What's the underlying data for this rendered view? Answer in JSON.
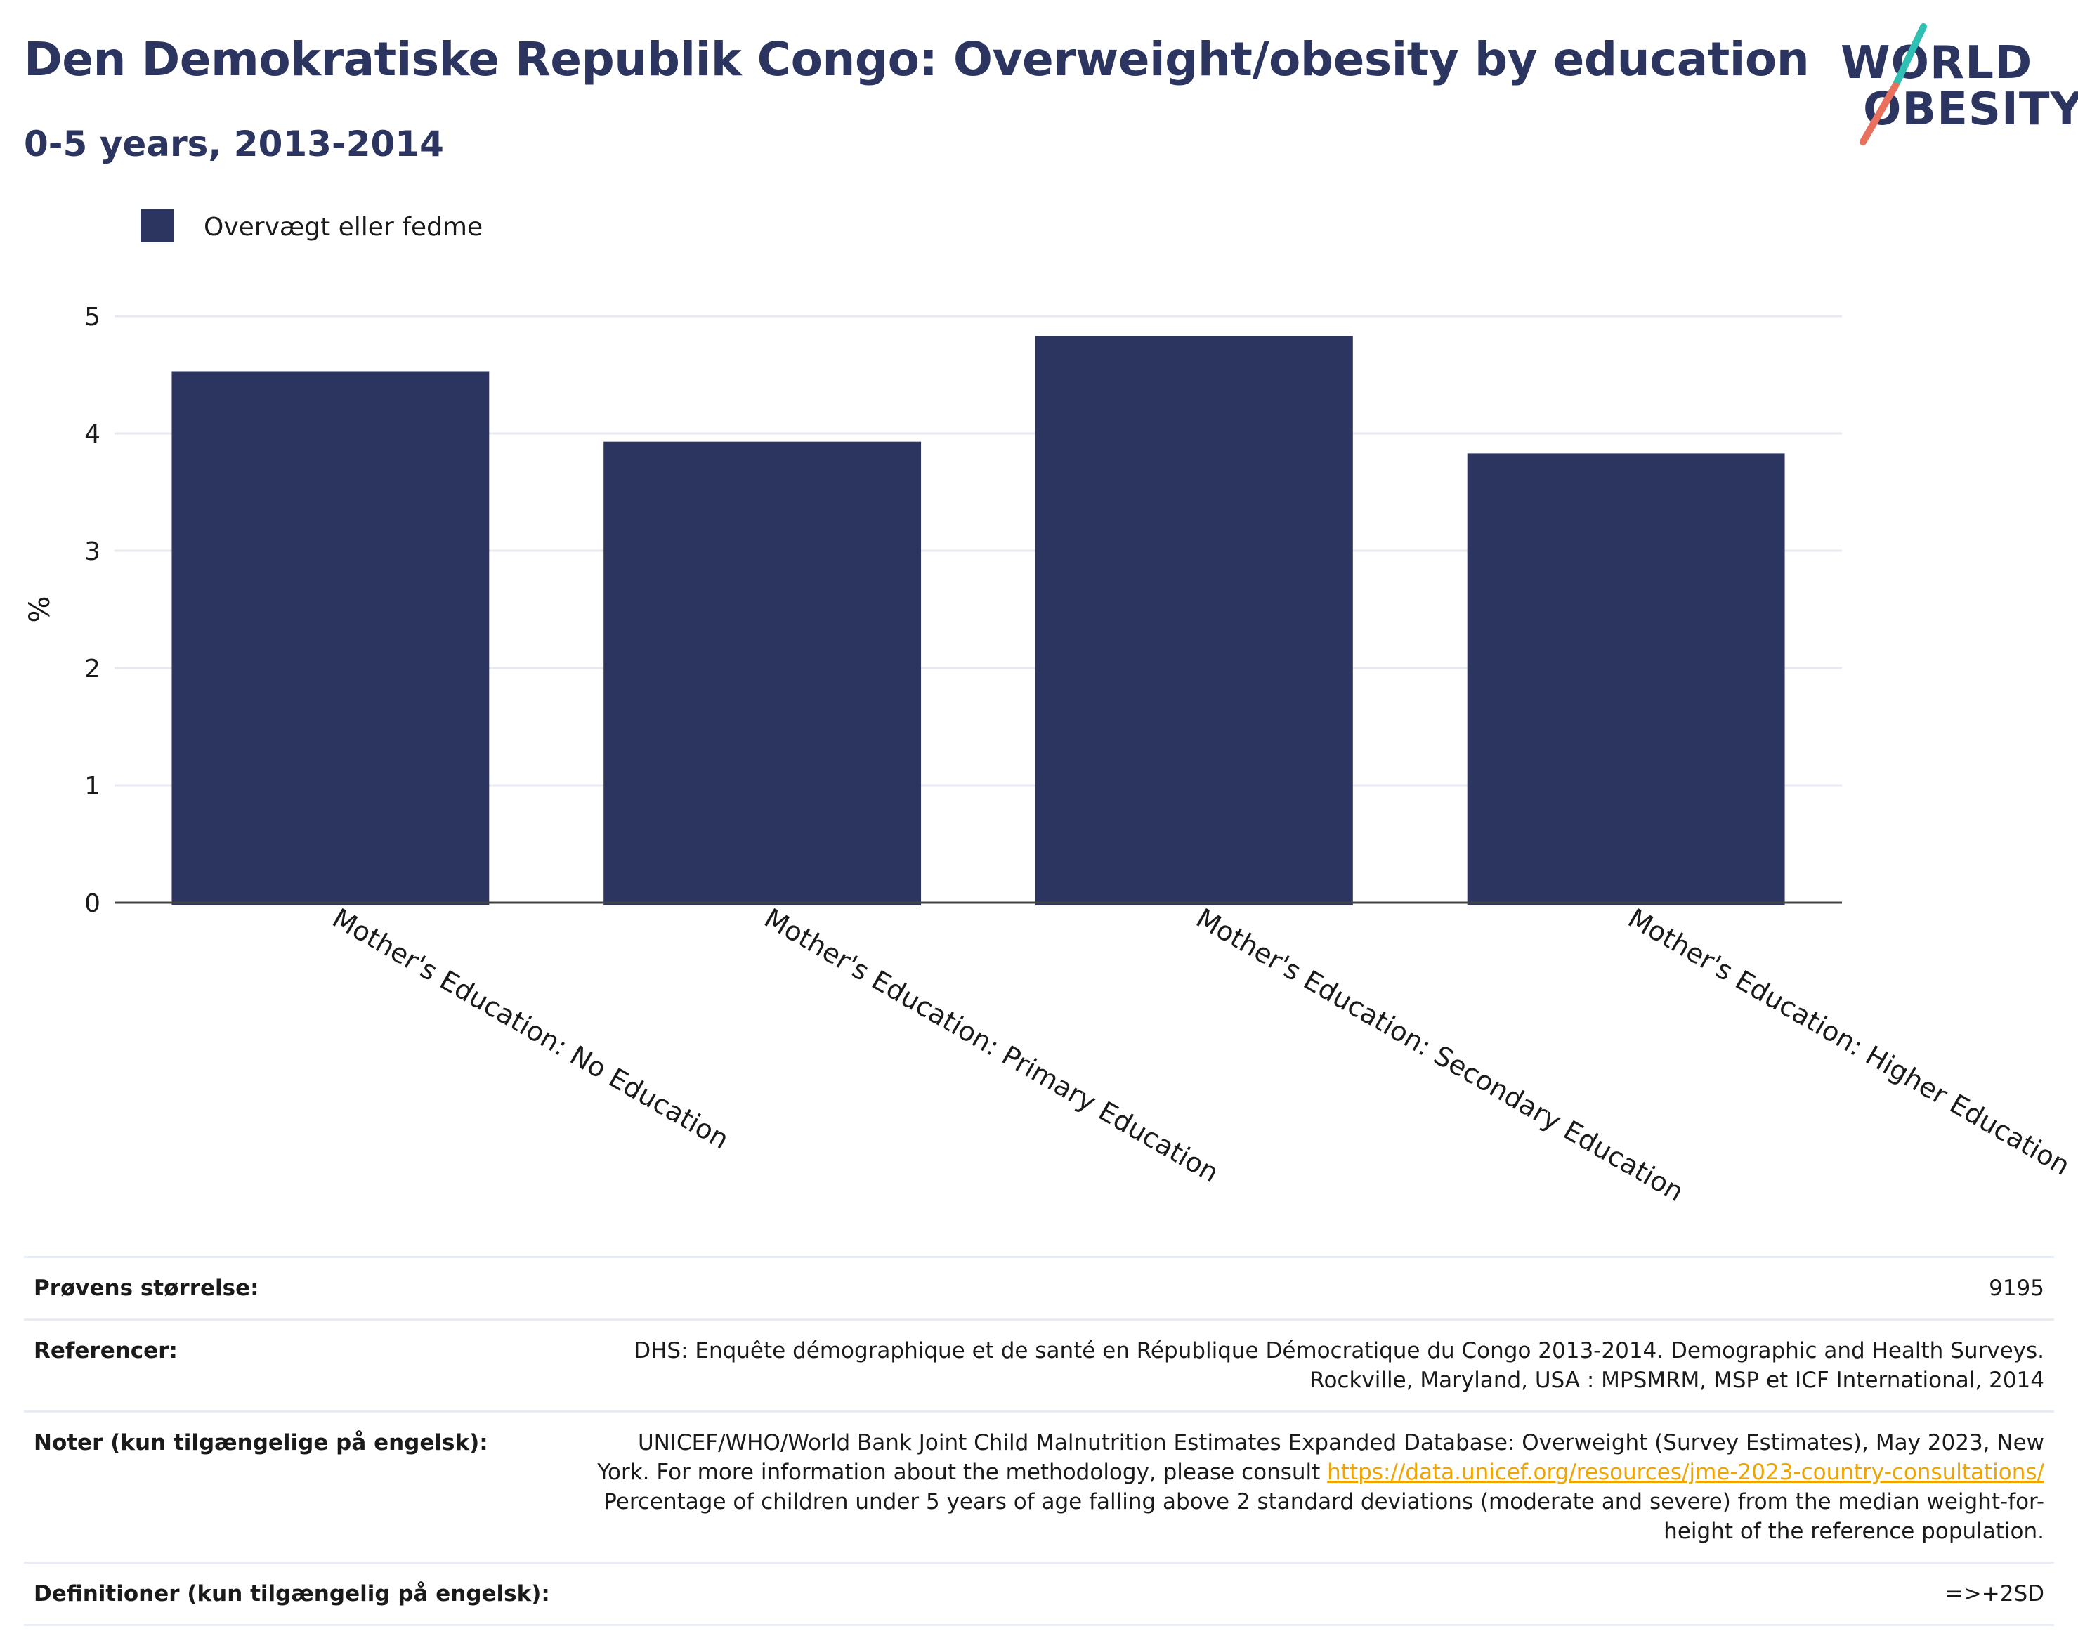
{
  "header": {
    "title": "Den Demokratiske Republik Congo: Overweight/obesity by education",
    "subtitle": "0-5 years, 2013-2014"
  },
  "logo": {
    "line1": "WORLD",
    "line2": "OBESITY",
    "slash_colors": [
      "#2fbfb3",
      "#e8705c"
    ]
  },
  "chart_data": {
    "type": "bar",
    "categories": [
      "Mother's Education: No Education",
      "Mother's Education: Primary Education",
      "Mother's Education: Secondary Education",
      "Mother's Education: Higher Education"
    ],
    "series": [
      {
        "name": "Overvægt eller fedme",
        "values": [
          4.53,
          3.93,
          4.83,
          3.83
        ],
        "color": "#2b3560"
      }
    ],
    "ylabel": "%",
    "xlabel": "",
    "ylim": [
      0,
      5
    ],
    "yticks": [
      0,
      1,
      2,
      3,
      4,
      5
    ],
    "grid": true,
    "legend_position": "top-left"
  },
  "info": {
    "sample_size_label": "Prøvens størrelse:",
    "sample_size_value": "9195",
    "references_label": "Referencer:",
    "references_line1": "DHS: Enquête démographique et de santé en République Démocratique du Congo 2013-2014. Demographic and Health Surveys.",
    "references_line2": "Rockville, Maryland, USA : MPSMRM, MSP et ICF International, 2014",
    "notes_label": "Noter (kun tilgængelige på engelsk):",
    "notes_line1": "UNICEF/WHO/World Bank Joint Child Malnutrition Estimates Expanded Database: Overweight (Survey Estimates), May 2023, New",
    "notes_line2_prefix": "York. For more information about the methodology, please consult ",
    "notes_link": "https://data.unicef.org/resources/jme-2023-country-consultations/",
    "notes_line3": "Percentage of children under 5 years of age falling above 2 standard deviations (moderate and severe) from the median weight-for-",
    "notes_line4": "height of the reference population.",
    "definitions_label": "Definitioner (kun tilgængelig på engelsk):",
    "definitions_value": "=>+2SD"
  }
}
